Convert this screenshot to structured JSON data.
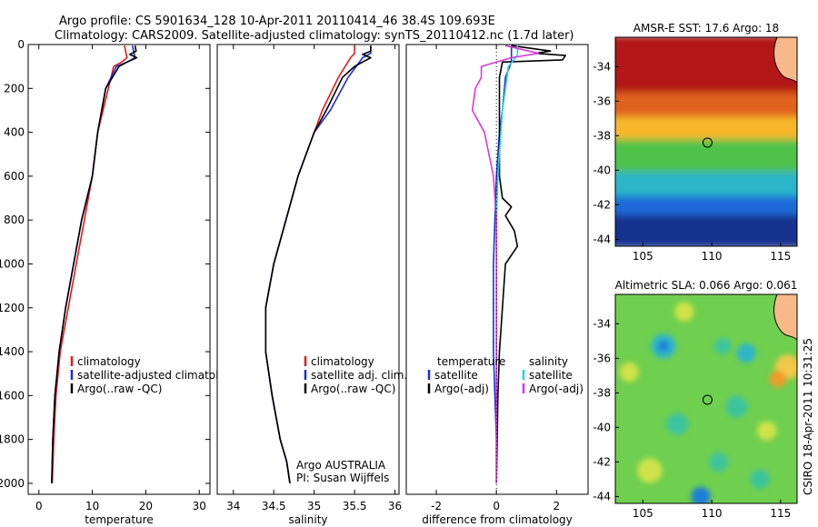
{
  "header": {
    "line1": "Argo profile: CS 5901634_128 10-Apr-2011 20110414_46 38.4S 109.693E",
    "line2": "Climatology: CARS2009. Satellite-adjusted climatology: synTS_20110412.nc (1.7d later)"
  },
  "credits": {
    "line1": "Argo AUSTRALIA",
    "line2": "PI: Susan Wijffels",
    "stamp": "CSIRO 18-Apr-2011 10:31:25"
  },
  "colors": {
    "climatology": "#e41a1c",
    "satellite": "#1f2bd8",
    "argo": "#000000",
    "salinity_satellite": "#22d3e6",
    "salinity_argo_adj": "#d63ad6"
  },
  "chart_data": [
    {
      "type": "line",
      "id": "temperature",
      "xlabel": "temperature",
      "ylabel": "",
      "xlim": [
        -2,
        32
      ],
      "ylim": [
        2050,
        0
      ],
      "xticks": [
        0,
        10,
        20,
        30
      ],
      "yticks": [
        0,
        200,
        400,
        600,
        800,
        1000,
        1200,
        1400,
        1600,
        1800,
        2000
      ],
      "legend": [
        "climatology",
        "satellite-adjusted climatology",
        "Argo(..raw -QC)"
      ],
      "legend_placement": "lower-right",
      "series": [
        {
          "name": "climatology",
          "color_key": "climatology",
          "x": [
            16.0,
            16.3,
            16.5,
            15.5,
            14.0,
            13.0,
            11.0,
            10.0,
            8.5,
            7.0,
            5.5,
            4.0,
            3.2,
            2.8,
            2.5
          ],
          "y": [
            5,
            40,
            60,
            80,
            100,
            200,
            400,
            600,
            800,
            1000,
            1200,
            1400,
            1600,
            1800,
            2000
          ]
        },
        {
          "name": "satellite-adjusted climatology",
          "color_key": "satellite",
          "x": [
            17.5,
            17.8,
            18.0,
            16.5,
            14.5,
            12.5,
            11.0,
            10.0,
            8.0,
            6.5,
            5.0,
            3.8,
            3.0,
            2.6,
            2.4
          ],
          "y": [
            5,
            40,
            60,
            80,
            100,
            200,
            400,
            600,
            800,
            1000,
            1200,
            1400,
            1600,
            1800,
            2000
          ]
        },
        {
          "name": "Argo(..raw -QC)",
          "color_key": "argo",
          "x": [
            18.0,
            18.2,
            17.0,
            18.3,
            16.5,
            15.0,
            12.5,
            11.0,
            10.0,
            8.0,
            6.5,
            5.0,
            3.8,
            3.0,
            2.6,
            2.4
          ],
          "y": [
            5,
            30,
            45,
            60,
            80,
            100,
            200,
            400,
            600,
            800,
            1000,
            1200,
            1400,
            1600,
            1800,
            2000
          ]
        }
      ]
    },
    {
      "type": "line",
      "id": "salinity",
      "xlabel": "salinity",
      "ylabel": "",
      "xlim": [
        33.8,
        36.05
      ],
      "ylim": [
        2050,
        0
      ],
      "xticks": [
        34,
        34.5,
        35,
        35.5,
        36
      ],
      "legend": [
        "climatology",
        "satellite adj. clim.",
        "Argo(..raw -QC)"
      ],
      "legend_placement": "lower-right",
      "series": [
        {
          "name": "climatology",
          "color_key": "climatology",
          "x": [
            35.5,
            35.5,
            35.45,
            35.3,
            35.1,
            35.0,
            34.8,
            34.65,
            34.5,
            34.4,
            34.4,
            34.48,
            34.58,
            34.66,
            34.7
          ],
          "y": [
            5,
            40,
            60,
            150,
            300,
            400,
            600,
            800,
            1000,
            1200,
            1400,
            1600,
            1800,
            1900,
            2000
          ]
        },
        {
          "name": "satellite adj. clim.",
          "color_key": "satellite",
          "x": [
            35.7,
            35.7,
            35.6,
            35.42,
            35.2,
            35.0,
            34.8,
            34.65,
            34.5,
            34.4,
            34.4,
            34.48,
            34.58,
            34.66,
            34.7
          ],
          "y": [
            5,
            40,
            60,
            150,
            300,
            400,
            600,
            800,
            1000,
            1200,
            1400,
            1600,
            1800,
            1900,
            2000
          ]
        },
        {
          "name": "Argo(..raw -QC)",
          "color_key": "argo",
          "x": [
            35.7,
            35.7,
            35.6,
            35.7,
            35.5,
            35.35,
            35.15,
            35.0,
            34.8,
            34.65,
            34.5,
            34.4,
            34.4,
            34.48,
            34.58,
            34.66,
            34.7
          ],
          "y": [
            5,
            30,
            45,
            60,
            100,
            150,
            300,
            400,
            600,
            800,
            1000,
            1200,
            1400,
            1600,
            1800,
            1900,
            2000
          ]
        }
      ]
    },
    {
      "type": "line",
      "id": "difference",
      "xlabel": "difference from climatology",
      "ylabel": "",
      "xlim": [
        -3,
        3.05
      ],
      "ylim": [
        2050,
        0
      ],
      "xticks": [
        -2,
        0,
        2
      ],
      "legend_left_header": "temperature",
      "legend_right_header": "salinity",
      "legend": [
        "satellite",
        "Argo(-adj)",
        "satellite",
        "Argo(-adj)"
      ],
      "legend_placement": "lower-right",
      "series": [
        {
          "name": "satellite",
          "group": "temperature",
          "color_key": "satellite",
          "x": [
            0.5,
            0.5,
            0.5,
            0.3,
            0.2,
            0.1,
            0.0,
            -0.05,
            -0.1,
            -0.1,
            -0.1,
            -0.05,
            0.0,
            0.0
          ],
          "y": [
            5,
            40,
            80,
            150,
            300,
            400,
            600,
            800,
            1000,
            1200,
            1400,
            1600,
            1800,
            2000
          ]
        },
        {
          "name": "Argo(-adj)",
          "group": "temperature",
          "color_key": "argo",
          "x": [
            0.5,
            1.8,
            1.3,
            2.3,
            2.2,
            0.2,
            0.1,
            0.1,
            0.1,
            0.2,
            0.5,
            0.3,
            0.6,
            0.7,
            0.3,
            0.2,
            0.1,
            0.05,
            0.0
          ],
          "y": [
            5,
            30,
            40,
            50,
            70,
            80,
            150,
            300,
            600,
            700,
            740,
            780,
            850,
            920,
            1000,
            1200,
            1400,
            1600,
            2000
          ]
        },
        {
          "name": "satellite",
          "group": "salinity",
          "color_key": "salinity_satellite",
          "x": [
            0.7,
            0.7,
            0.4,
            0.3,
            0.2,
            0.15,
            0.05,
            0.0,
            0.0,
            0.0,
            0.0
          ],
          "y": [
            5,
            50,
            100,
            200,
            300,
            400,
            600,
            800,
            1200,
            1600,
            2000
          ]
        },
        {
          "name": "Argo(-adj)",
          "group": "salinity",
          "color_key": "salinity_argo_adj",
          "x": [
            0.3,
            1.4,
            0.5,
            -0.5,
            -0.5,
            -0.7,
            -0.8,
            -0.4,
            -0.1,
            0.0,
            0.0,
            0.0
          ],
          "y": [
            5,
            40,
            60,
            100,
            150,
            200,
            300,
            400,
            600,
            800,
            1200,
            2000
          ]
        }
      ]
    },
    {
      "type": "heatmap",
      "id": "sst_map",
      "title": "AMSR-E SST: 17.6  Argo: 18",
      "xlim": [
        103,
        116.2
      ],
      "ylim": [
        -44.4,
        -32.3
      ],
      "xticks": [
        105,
        110,
        115
      ],
      "yticks": [
        -34,
        -36,
        -38,
        -40,
        -42,
        -44
      ],
      "marker": {
        "lon": 109.693,
        "lat": -38.4
      },
      "bands": [
        {
          "lat_from": -32.3,
          "lat_to": -35.6,
          "color": "#b21212"
        },
        {
          "lat_from": -35.6,
          "lat_to": -37.0,
          "color": "#e0621c"
        },
        {
          "lat_from": -37.0,
          "lat_to": -38.3,
          "color": "#f6b72c"
        },
        {
          "lat_from": -38.3,
          "lat_to": -40.2,
          "color": "#4fc24a"
        },
        {
          "lat_from": -40.2,
          "lat_to": -41.6,
          "color": "#2ab5c9"
        },
        {
          "lat_from": -41.6,
          "lat_to": -42.7,
          "color": "#1f6bd8"
        },
        {
          "lat_from": -42.7,
          "lat_to": -44.4,
          "color": "#12308f"
        }
      ]
    },
    {
      "type": "heatmap",
      "id": "sla_map",
      "title": "Altimetric SLA: 0.066  Argo: 0.061",
      "xlim": [
        103,
        116.2
      ],
      "ylim": [
        -44.4,
        -32.3
      ],
      "xticks": [
        105,
        110,
        115
      ],
      "yticks": [
        -34,
        -36,
        -38,
        -40,
        -42,
        -44
      ],
      "marker": {
        "lon": 109.693,
        "lat": -38.4
      },
      "background": "#6fcf4e",
      "blobs": [
        {
          "lon": 106.5,
          "lat": -35.3,
          "r": 0.9,
          "color": "#2fb6c8"
        },
        {
          "lon": 106.5,
          "lat": -35.3,
          "r": 0.4,
          "color": "#1f7fd8"
        },
        {
          "lon": 110.8,
          "lat": -35.3,
          "r": 0.6,
          "color": "#3cc49c"
        },
        {
          "lon": 112.5,
          "lat": -35.7,
          "r": 0.7,
          "color": "#2fb6c8"
        },
        {
          "lon": 115.5,
          "lat": -36.5,
          "r": 0.9,
          "color": "#f1c84a"
        },
        {
          "lon": 114.8,
          "lat": -37.2,
          "r": 0.6,
          "color": "#f29a2a"
        },
        {
          "lon": 104.0,
          "lat": -36.8,
          "r": 0.7,
          "color": "#cfe24a"
        },
        {
          "lon": 107.5,
          "lat": -39.8,
          "r": 0.8,
          "color": "#3cc49c"
        },
        {
          "lon": 111.8,
          "lat": -38.8,
          "r": 0.8,
          "color": "#3cc49c"
        },
        {
          "lon": 114.0,
          "lat": -40.2,
          "r": 0.7,
          "color": "#cfe24a"
        },
        {
          "lon": 105.5,
          "lat": -42.5,
          "r": 0.9,
          "color": "#cfe24a"
        },
        {
          "lon": 110.5,
          "lat": -42.0,
          "r": 0.7,
          "color": "#3cc49c"
        },
        {
          "lon": 113.5,
          "lat": -43.0,
          "r": 0.7,
          "color": "#3cc49c"
        },
        {
          "lon": 109.2,
          "lat": -44.0,
          "r": 0.7,
          "color": "#1f7fd8"
        },
        {
          "lon": 108.0,
          "lat": -33.3,
          "r": 0.7,
          "color": "#cfe24a"
        }
      ]
    }
  ]
}
